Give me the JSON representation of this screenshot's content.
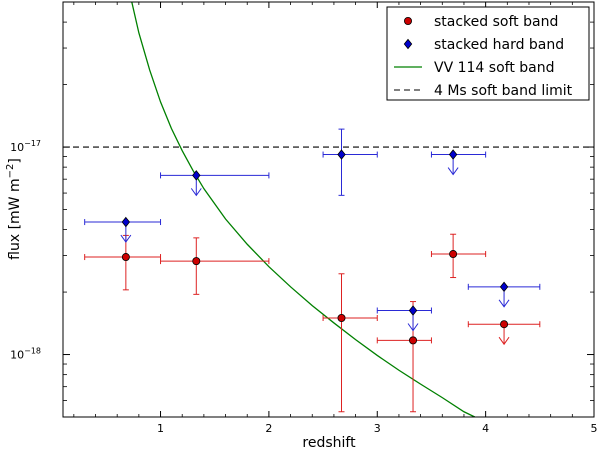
{
  "chart_data": {
    "type": "scatter",
    "title": "",
    "xlabel": "redshift",
    "ylabel": "flux [mW m",
    "ylabel_sup": "−2",
    "ylabel_end": "]",
    "xlim": [
      0.1,
      5.0
    ],
    "ylim": [
      5e-19,
      5e-17
    ],
    "yscale": "log",
    "x_ticks": [
      {
        "value": 1,
        "label": "1"
      },
      {
        "value": 2,
        "label": "2"
      },
      {
        "value": 3,
        "label": "3"
      },
      {
        "value": 4,
        "label": "4"
      },
      {
        "value": 5,
        "label": "5"
      }
    ],
    "y_ticks": [
      {
        "value": 1e-18,
        "base": "10",
        "exp": "−18"
      },
      {
        "value": 1e-17,
        "base": "10",
        "exp": "−17"
      }
    ],
    "legend_position": "top-right",
    "series": [
      {
        "name": "stacked soft band",
        "marker": "circle",
        "color": "#cc0000",
        "errorbar_color": "#dd2222",
        "points": [
          {
            "x": 0.68,
            "xerr": [
              0.38,
              0.32
            ],
            "y": 2.95e-18,
            "yerr": [
              2.05e-18,
              3.75e-18
            ]
          },
          {
            "x": 1.33,
            "xerr": [
              0.33,
              0.67
            ],
            "y": 2.82e-18,
            "yerr": [
              1.95e-18,
              3.65e-18
            ]
          },
          {
            "x": 2.67,
            "xerr": [
              0.17,
              0.33
            ],
            "y": 1.5e-18,
            "yerr": [
              5.3e-19,
              2.45e-18
            ]
          },
          {
            "x": 3.33,
            "xerr": [
              0.33,
              0.17
            ],
            "y": 1.17e-18,
            "yerr": [
              5.3e-19,
              1.8e-18
            ]
          },
          {
            "x": 3.7,
            "xerr": [
              0.2,
              0.3
            ],
            "y": 3.05e-18,
            "yerr": [
              2.35e-18,
              3.8e-18
            ]
          },
          {
            "x": 4.17,
            "xerr": [
              0.33,
              0.33
            ],
            "y": 1.4e-18,
            "upper_limit": true
          }
        ]
      },
      {
        "name": "stacked hard band",
        "marker": "diamond",
        "color": "#0000cc",
        "errorbar_color": "#2a2ad6",
        "points": [
          {
            "x": 0.68,
            "xerr": [
              0.38,
              0.32
            ],
            "y": 4.35e-18,
            "upper_limit": true
          },
          {
            "x": 1.33,
            "xerr": [
              0.33,
              0.67
            ],
            "y": 7.3e-18,
            "upper_limit": true
          },
          {
            "x": 2.67,
            "xerr": [
              0.17,
              0.33
            ],
            "y": 9.2e-18,
            "yerr": [
              5.85e-18,
              1.22e-17
            ]
          },
          {
            "x": 3.33,
            "xerr": [
              0.33,
              0.17
            ],
            "y": 1.63e-18,
            "upper_limit": true
          },
          {
            "x": 3.7,
            "xerr": [
              0.2,
              0.3
            ],
            "y": 9.2e-18,
            "upper_limit": true
          },
          {
            "x": 4.17,
            "xerr": [
              0.33,
              0.33
            ],
            "y": 2.12e-18,
            "upper_limit": true
          }
        ]
      },
      {
        "name": "VV 114 soft band",
        "type": "line",
        "color": "#008000",
        "points": [
          {
            "x": 0.7,
            "y": 6e-17
          },
          {
            "x": 0.8,
            "y": 3.55e-17
          },
          {
            "x": 0.9,
            "y": 2.35e-17
          },
          {
            "x": 1.0,
            "y": 1.65e-17
          },
          {
            "x": 1.1,
            "y": 1.23e-17
          },
          {
            "x": 1.2,
            "y": 9.6e-18
          },
          {
            "x": 1.3,
            "y": 7.7e-18
          },
          {
            "x": 1.4,
            "y": 6.3e-18
          },
          {
            "x": 1.6,
            "y": 4.5e-18
          },
          {
            "x": 1.8,
            "y": 3.4e-18
          },
          {
            "x": 2.0,
            "y": 2.65e-18
          },
          {
            "x": 2.2,
            "y": 2.12e-18
          },
          {
            "x": 2.4,
            "y": 1.72e-18
          },
          {
            "x": 2.6,
            "y": 1.42e-18
          },
          {
            "x": 2.8,
            "y": 1.18e-18
          },
          {
            "x": 3.0,
            "y": 9.9e-19
          },
          {
            "x": 3.2,
            "y": 8.4e-19
          },
          {
            "x": 3.4,
            "y": 7.2e-19
          },
          {
            "x": 3.6,
            "y": 6.2e-19
          },
          {
            "x": 3.8,
            "y": 5.3e-19
          },
          {
            "x": 3.9,
            "y": 5e-19
          }
        ]
      },
      {
        "name": "4 Ms soft band limit",
        "type": "hline",
        "style": "dashed",
        "color": "#000000",
        "y": 1e-17
      }
    ]
  }
}
